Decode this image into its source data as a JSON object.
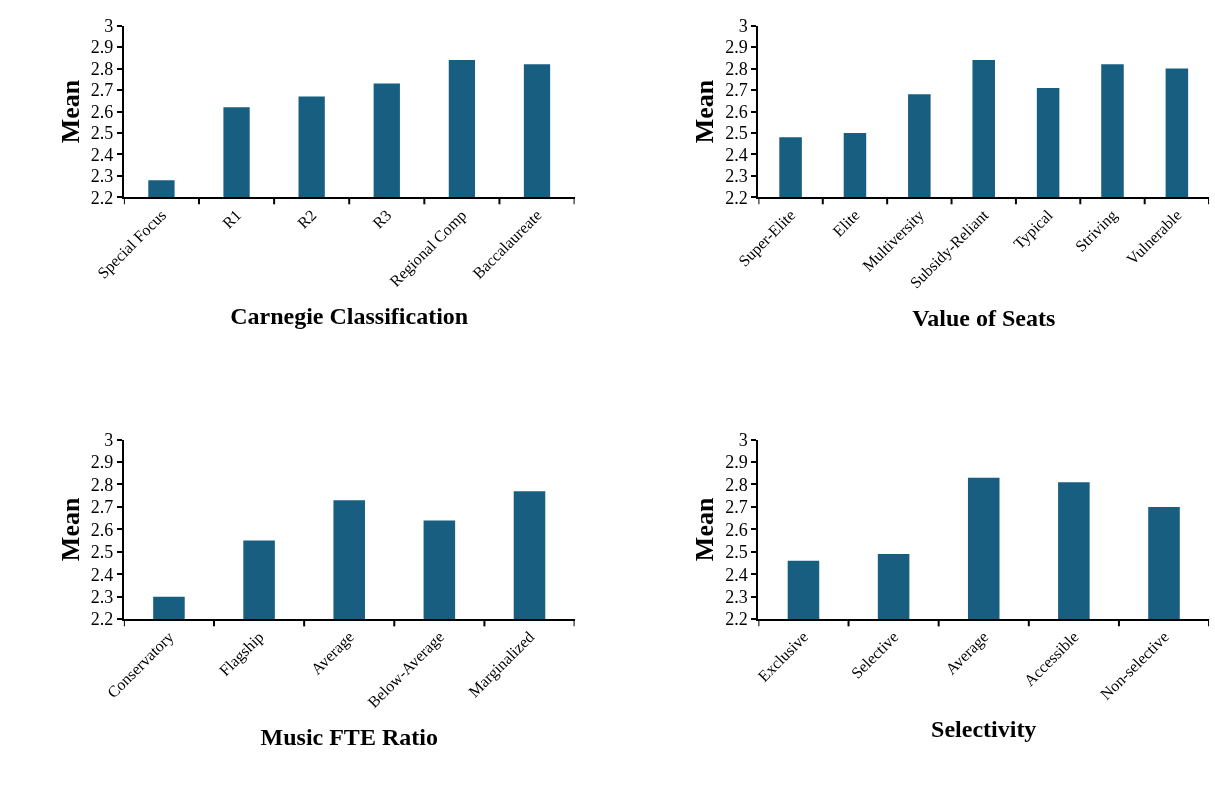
{
  "chart_data": [
    {
      "type": "bar",
      "xlabel": "Carnegie Classification",
      "ylabel": "Mean",
      "categories": [
        "Special Focus",
        "R1",
        "R2",
        "R3",
        "Regional Comp",
        "Baccalaureate"
      ],
      "values": [
        2.28,
        2.62,
        2.67,
        2.73,
        2.84,
        2.82
      ],
      "color": "#175e80",
      "ylim": [
        2.2,
        3
      ],
      "yticks": [
        2.2,
        2.3,
        2.4,
        2.5,
        2.6,
        2.7,
        2.8,
        2.9,
        3
      ]
    },
    {
      "type": "bar",
      "xlabel": "Value of Seats",
      "ylabel": "Mean",
      "categories": [
        "Super-Elite",
        "Elite",
        "Multiversity",
        "Subsidy-Reliant",
        "Typical",
        "Striving",
        "Vulnerable"
      ],
      "values": [
        2.48,
        2.5,
        2.68,
        2.84,
        2.71,
        2.82,
        2.8
      ],
      "color": "#175e80",
      "ylim": [
        2.2,
        3
      ],
      "yticks": [
        2.2,
        2.3,
        2.4,
        2.5,
        2.6,
        2.7,
        2.8,
        2.9,
        3
      ]
    },
    {
      "type": "bar",
      "xlabel": "Music FTE Ratio",
      "ylabel": "Mean",
      "categories": [
        "Conservatory",
        "Flagship",
        "Average",
        "Below-Average",
        "Marginalized"
      ],
      "values": [
        2.3,
        2.55,
        2.73,
        2.64,
        2.77
      ],
      "color": "#175e80",
      "ylim": [
        2.2,
        3
      ],
      "yticks": [
        2.2,
        2.3,
        2.4,
        2.5,
        2.6,
        2.7,
        2.8,
        2.9,
        3
      ]
    },
    {
      "type": "bar",
      "xlabel": "Selectivity",
      "ylabel": "Mean",
      "categories": [
        "Exclusive",
        "Selective",
        "Average",
        "Accessible",
        "Non-selective"
      ],
      "values": [
        2.46,
        2.49,
        2.83,
        2.81,
        2.7
      ],
      "color": "#175e80",
      "ylim": [
        2.2,
        3
      ],
      "yticks": [
        2.2,
        2.3,
        2.4,
        2.5,
        2.6,
        2.7,
        2.8,
        2.9,
        3
      ]
    }
  ]
}
